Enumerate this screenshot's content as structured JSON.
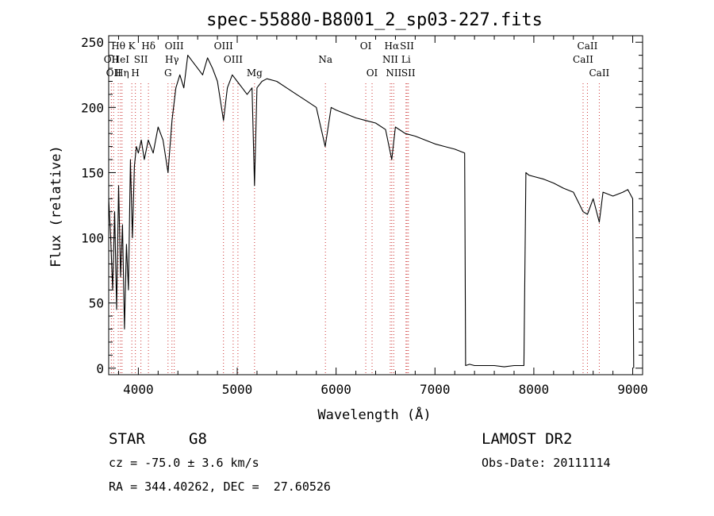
{
  "chart_data": {
    "type": "line",
    "title": "spec-55880-B8001_2_sp03-227.fits",
    "xlabel": "Wavelength (Å)",
    "ylabel": "Flux (relative)",
    "xlim": [
      3700,
      9100
    ],
    "ylim": [
      -5,
      255
    ],
    "xticks": [
      4000,
      5000,
      6000,
      7000,
      8000,
      9000
    ],
    "yticks": [
      0,
      50,
      100,
      150,
      200,
      250
    ],
    "grid": false,
    "series": [
      {
        "x": [
          3700,
          3720,
          3740,
          3760,
          3780,
          3800,
          3820,
          3840,
          3860,
          3880,
          3900,
          3920,
          3940,
          3960,
          3980,
          4000,
          4030,
          4060,
          4100,
          4150,
          4200,
          4250,
          4300,
          4340,
          4380,
          4420,
          4460,
          4500,
          4550,
          4600,
          4650,
          4700,
          4750,
          4800,
          4861,
          4900,
          4950,
          5000,
          5050,
          5100,
          5150,
          5175,
          5200,
          5250,
          5300,
          5400,
          5500,
          5600,
          5700,
          5800,
          5890,
          5950,
          6000,
          6100,
          6200,
          6300,
          6400,
          6500,
          6563,
          6600,
          6700,
          6800,
          6900,
          7000,
          7100,
          7200,
          7300,
          7310,
          7350,
          7400,
          7500,
          7600,
          7700,
          7800,
          7900,
          7920,
          7950,
          8000,
          8100,
          8200,
          8300,
          8400,
          8498,
          8542,
          8600,
          8662,
          8700,
          8800,
          8900,
          8950,
          9000,
          9010
        ],
        "y": [
          130,
          100,
          60,
          120,
          45,
          140,
          70,
          110,
          30,
          95,
          60,
          160,
          100,
          155,
          170,
          165,
          175,
          160,
          175,
          165,
          185,
          175,
          150,
          190,
          215,
          225,
          215,
          240,
          235,
          230,
          225,
          238,
          230,
          220,
          190,
          215,
          225,
          220,
          215,
          210,
          215,
          140,
          215,
          220,
          222,
          220,
          215,
          210,
          205,
          200,
          170,
          200,
          198,
          195,
          192,
          190,
          188,
          183,
          160,
          185,
          180,
          178,
          175,
          172,
          170,
          168,
          165,
          2,
          3,
          2,
          2,
          2,
          1,
          2,
          2,
          150,
          148,
          147,
          145,
          142,
          138,
          135,
          120,
          118,
          130,
          112,
          135,
          132,
          135,
          137,
          130,
          0
        ]
      }
    ],
    "lines": [
      {
        "x": 3727,
        "label": "OII",
        "row": 2
      },
      {
        "x": 3750,
        "label": "OII",
        "row": 3
      },
      {
        "x": 3797,
        "label": "Hθ",
        "row": 1
      },
      {
        "x": 3819,
        "label": "HeI",
        "row": 2
      },
      {
        "x": 3835,
        "label": "Hη",
        "row": 3
      },
      {
        "x": 3934,
        "label": "K",
        "row": 1
      },
      {
        "x": 3970,
        "label": "H",
        "row": 3
      },
      {
        "x": 4026,
        "label": "SII",
        "row": 2
      },
      {
        "x": 4102,
        "label": "Hδ",
        "row": 1
      },
      {
        "x": 4300,
        "label": "G",
        "row": 3
      },
      {
        "x": 4340,
        "label": "Hγ",
        "row": 2
      },
      {
        "x": 4363,
        "label": "OIII",
        "row": 1
      },
      {
        "x": 4861,
        "label": "OIII",
        "row": 1
      },
      {
        "x": 4959,
        "label": "OIII",
        "row": 2
      },
      {
        "x": 5007,
        "label": "",
        "row": 0
      },
      {
        "x": 5175,
        "label": "Mg",
        "row": 3
      },
      {
        "x": 5892,
        "label": "Na",
        "row": 2
      },
      {
        "x": 6300,
        "label": "OI",
        "row": 1
      },
      {
        "x": 6364,
        "label": "OI",
        "row": 3
      },
      {
        "x": 6548,
        "label": "NII",
        "row": 2
      },
      {
        "x": 6563,
        "label": "Hα",
        "row": 1
      },
      {
        "x": 6583,
        "label": "NII",
        "row": 3
      },
      {
        "x": 6707,
        "label": "Li",
        "row": 2
      },
      {
        "x": 6717,
        "label": "SII",
        "row": 1
      },
      {
        "x": 6731,
        "label": "SII",
        "row": 3
      },
      {
        "x": 8498,
        "label": "CaII",
        "row": 2
      },
      {
        "x": 8542,
        "label": "CaII",
        "row": 1
      },
      {
        "x": 8662,
        "label": "CaII",
        "row": 3
      }
    ]
  },
  "info": {
    "object_class": "STAR",
    "subclass": "G8",
    "survey": "LAMOST DR2",
    "cz": "cz = -75.0 ± 3.6 km/s",
    "obs_date": "Obs-Date: 20111114",
    "radec": "RA = 344.40262, DEC =  27.60526"
  },
  "colors": {
    "spectrum": "#000000",
    "line_markers": "#cc3333",
    "axes": "#000000",
    "background": "#ffffff"
  }
}
